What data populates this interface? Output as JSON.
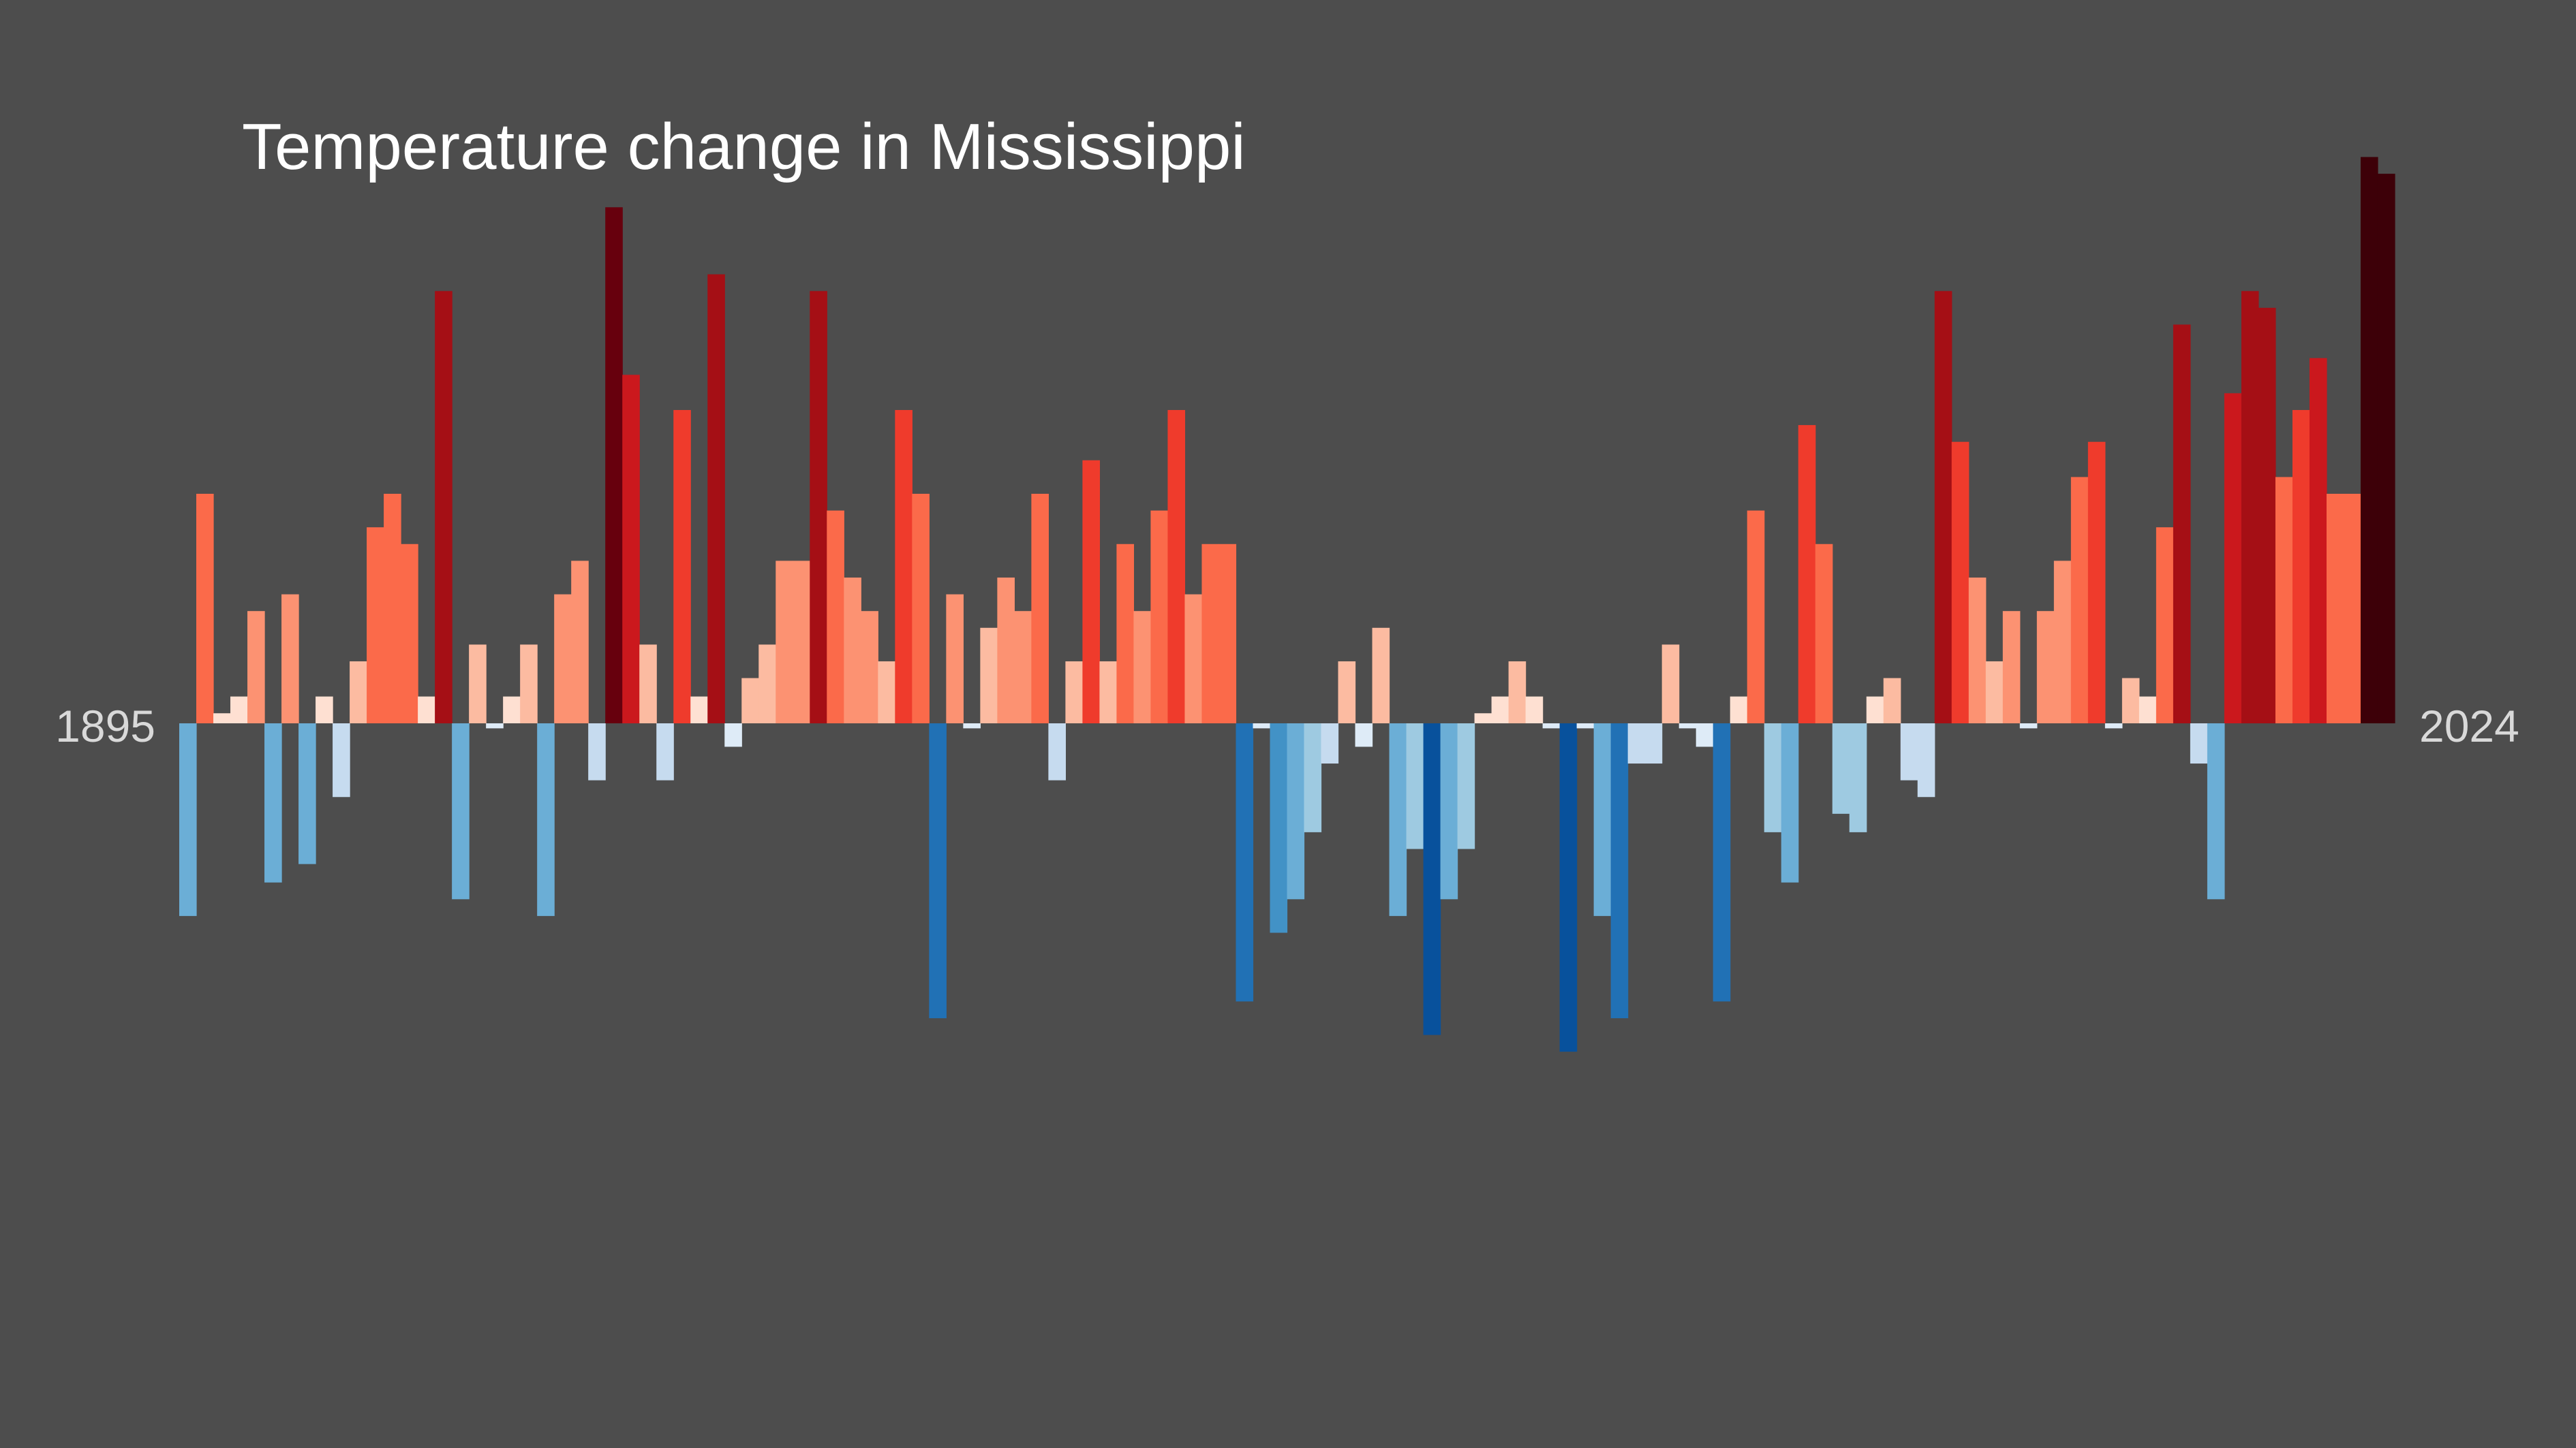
{
  "chart_data": {
    "type": "bar",
    "title": "Temperature change in Mississippi",
    "xlabel": "",
    "ylabel": "",
    "x_start_label": "1895",
    "x_end_label": "2024",
    "ylim": [
      -2.0,
      3.4
    ],
    "grid": false,
    "legend": "none",
    "categories": [
      "1895",
      "1896",
      "1897",
      "1898",
      "1899",
      "1900",
      "1901",
      "1902",
      "1903",
      "1904",
      "1905",
      "1906",
      "1907",
      "1908",
      "1909",
      "1910",
      "1911",
      "1912",
      "1913",
      "1914",
      "1915",
      "1916",
      "1917",
      "1918",
      "1919",
      "1920",
      "1921",
      "1922",
      "1923",
      "1924",
      "1925",
      "1926",
      "1927",
      "1928",
      "1929",
      "1930",
      "1931",
      "1932",
      "1933",
      "1934",
      "1935",
      "1936",
      "1937",
      "1938",
      "1939",
      "1940",
      "1941",
      "1942",
      "1943",
      "1944",
      "1945",
      "1946",
      "1947",
      "1948",
      "1949",
      "1950",
      "1951",
      "1952",
      "1953",
      "1954",
      "1955",
      "1956",
      "1957",
      "1958",
      "1959",
      "1960",
      "1961",
      "1962",
      "1963",
      "1964",
      "1965",
      "1966",
      "1967",
      "1968",
      "1969",
      "1970",
      "1971",
      "1972",
      "1973",
      "1974",
      "1975",
      "1976",
      "1977",
      "1978",
      "1979",
      "1980",
      "1981",
      "1982",
      "1983",
      "1984",
      "1985",
      "1986",
      "1987",
      "1988",
      "1989",
      "1990",
      "1991",
      "1992",
      "1993",
      "1994",
      "1995",
      "1996",
      "1997",
      "1998",
      "1999",
      "2000",
      "2001",
      "2002",
      "2003",
      "2004",
      "2005",
      "2006",
      "2007",
      "2008",
      "2009",
      "2010",
      "2011",
      "2012",
      "2013",
      "2014",
      "2015",
      "2016",
      "2017",
      "2018",
      "2019",
      "2020",
      "2021",
      "2022",
      "2023",
      "2024"
    ],
    "values": [
      -1.15,
      1.37,
      0.06,
      0.16,
      0.67,
      -0.95,
      0.77,
      -0.84,
      0.16,
      -0.44,
      0.37,
      1.17,
      1.37,
      1.07,
      0.16,
      2.58,
      -1.05,
      0.47,
      -0.03,
      0.16,
      0.47,
      -1.15,
      0.77,
      0.97,
      -0.34,
      3.08,
      2.08,
      0.47,
      -0.34,
      1.87,
      0.16,
      2.68,
      -0.14,
      0.27,
      0.47,
      0.97,
      0.97,
      2.58,
      1.27,
      0.87,
      0.67,
      0.37,
      1.87,
      1.37,
      -1.76,
      0.77,
      -0.03,
      0.57,
      0.87,
      0.67,
      1.37,
      -0.34,
      0.37,
      1.57,
      0.37,
      1.07,
      0.67,
      1.27,
      1.87,
      0.77,
      1.07,
      1.07,
      -1.66,
      -0.03,
      -1.25,
      -1.05,
      -0.65,
      -0.24,
      0.37,
      -0.14,
      0.57,
      -1.15,
      -0.75,
      -1.86,
      -1.05,
      -0.75,
      0.06,
      0.16,
      0.37,
      0.16,
      -0.03,
      -1.96,
      -0.03,
      -1.15,
      -1.76,
      -0.24,
      -0.24,
      0.47,
      -0.03,
      -0.14,
      -1.66,
      0.16,
      1.27,
      -0.65,
      -0.95,
      1.78,
      1.07,
      -0.54,
      -0.65,
      0.16,
      0.27,
      -0.34,
      -0.44,
      2.58,
      1.68,
      0.87,
      0.37,
      0.67,
      -0.03,
      0.67,
      0.97,
      1.47,
      1.68,
      -0.03,
      0.27,
      0.16,
      1.17,
      2.38,
      -0.24,
      -1.05,
      1.97,
      2.58,
      2.48,
      1.47,
      1.87,
      2.18,
      1.37,
      1.37,
      3.38,
      3.28
    ],
    "colors": {
      "background": "#4d4d4d",
      "title": "#ffffff",
      "year_labels": "#d9d9d9",
      "scale": [
        "#08519c",
        "#2171b5",
        "#4292c6",
        "#6baed6",
        "#9ecae1",
        "#c6dbef",
        "#deebf7",
        "#fee0d2",
        "#fcbba1",
        "#fc9272",
        "#fb6a4a",
        "#ef3b2c",
        "#cb181d",
        "#a50f15",
        "#67000d",
        "#3d0008"
      ]
    }
  }
}
